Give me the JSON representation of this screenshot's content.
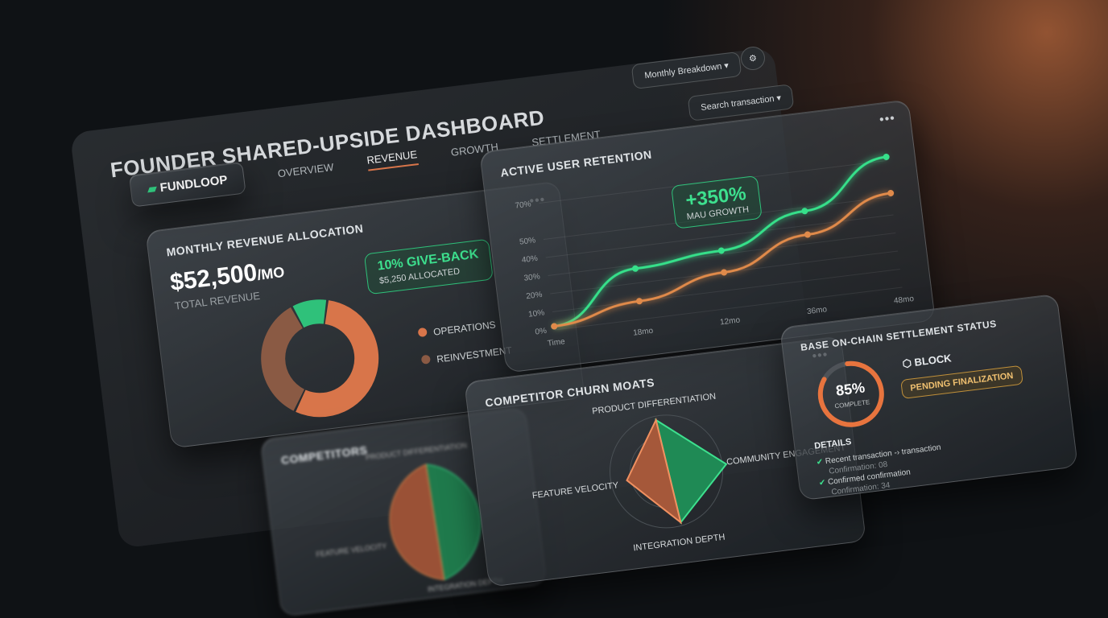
{
  "header": {
    "title": "FOUNDER SHARED-UPSIDE DASHBOARD",
    "filter": "Monthly Breakdown",
    "search": "Search transaction"
  },
  "nav": {
    "brand": "FUNDLOOP",
    "tabs": [
      "OVERVIEW",
      "REVENUE",
      "GROWTH",
      "SETTLEMENT"
    ]
  },
  "revenue": {
    "title": "MONTHLY REVENUE ALLOCATION",
    "amount": "$52,500",
    "unit": "/MO",
    "subtitle": "TOTAL REVENUE",
    "callout_title": "10% GIVE-BACK",
    "callout_text": "$5,250 ALLOCATED",
    "legend": [
      "OPERATIONS",
      "REINVESTMENT"
    ],
    "donut": {
      "values": [
        10,
        55,
        35
      ],
      "colors": [
        "#2fc17a",
        "#d8754a",
        "#8a5a44"
      ]
    }
  },
  "retention": {
    "title": "ACTIVE USER RETENTION",
    "callout_value": "+350%",
    "callout_text": "MAU GROWTH",
    "categories": [
      "Time",
      "18mo",
      "12mo",
      "36mo",
      "48mo"
    ],
    "ylim": [
      0,
      75
    ],
    "yticks": [
      {
        "value": 0,
        "label": "0%"
      },
      {
        "value": 10,
        "label": "10%"
      },
      {
        "value": 20,
        "label": "20%"
      },
      {
        "value": 30,
        "label": "30%"
      },
      {
        "value": 40,
        "label": "40%"
      },
      {
        "value": 50,
        "label": "50%"
      },
      {
        "value": 70,
        "label": "70%"
      }
    ],
    "series": [
      {
        "color": "#36e08a",
        "values": [
          2,
          28,
          32,
          48,
          72
        ]
      },
      {
        "color": "#e08a4a",
        "values": [
          2,
          10,
          20,
          35,
          52
        ]
      }
    ]
  },
  "settlement": {
    "title": "BASE ON-CHAIN SETTLEMENT STATUS",
    "progress": {
      "value": 85,
      "label": "85%"
    },
    "progress_text": "COMPLETE",
    "block": "BLOCK",
    "status": "PENDING FINALIZATION",
    "details": "DETAILS",
    "items": [
      {
        "title": "Recent transaction -› transaction",
        "sub": "Confirmation: 08"
      },
      {
        "title": "Confirmed confirmation",
        "sub": "Confirmation: 34"
      }
    ]
  },
  "moats": {
    "title": "COMPETITOR CHURN MOATS",
    "axes": [
      "PRODUCT DIFFERENTIATION",
      "COMMUNITY ENGAGEMENT",
      "INTEGRATION DEPTH",
      "FEATURE VELOCITY"
    ]
  },
  "competitors": {
    "title": "COMPETITORS",
    "axes": [
      "PRODUCT DIFFERENTIATION",
      "FEATURE VELOCITY",
      "INTEGRATION DEPTH"
    ]
  }
}
